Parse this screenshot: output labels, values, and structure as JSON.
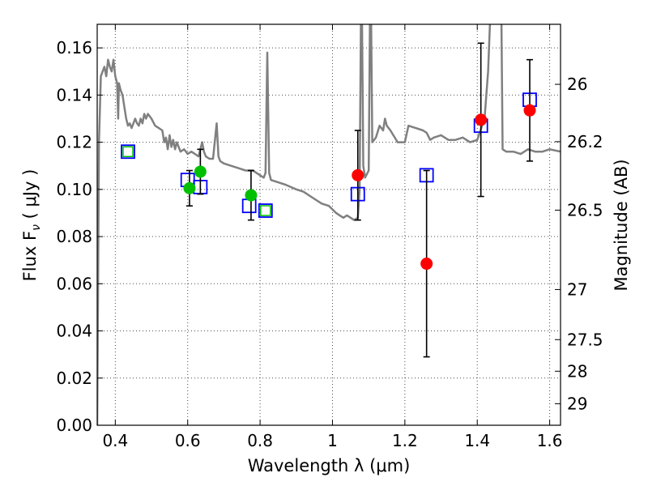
{
  "chart_data": {
    "type": "scatter",
    "xlabel": "Wavelength  λ (μm)",
    "ylabel": "Flux  F",
    "ylabel_sub": "ν",
    "ylabel_tail": " ( μJy )",
    "y2label": "Magnitude (AB)",
    "xlim": [
      0.35,
      1.63
    ],
    "ylim": [
      0.0,
      0.17
    ],
    "grid": true,
    "x_ticks": [
      {
        "value": 0.4,
        "label": "0.4"
      },
      {
        "value": 0.6,
        "label": "0.6"
      },
      {
        "value": 0.8,
        "label": "0.8"
      },
      {
        "value": 1.0,
        "label": "1"
      },
      {
        "value": 1.2,
        "label": "1.2"
      },
      {
        "value": 1.4,
        "label": "1.4"
      },
      {
        "value": 1.6,
        "label": "1.6"
      }
    ],
    "y_ticks": [
      {
        "value": 0.0,
        "label": "0.00"
      },
      {
        "value": 0.02,
        "label": "0.02"
      },
      {
        "value": 0.04,
        "label": "0.04"
      },
      {
        "value": 0.06,
        "label": "0.06"
      },
      {
        "value": 0.08,
        "label": "0.08"
      },
      {
        "value": 0.1,
        "label": "0.10"
      },
      {
        "value": 0.12,
        "label": "0.12"
      },
      {
        "value": 0.14,
        "label": "0.14"
      },
      {
        "value": 0.16,
        "label": "0.16"
      }
    ],
    "y2_ticks": [
      {
        "mag": 26,
        "label": "26"
      },
      {
        "mag": 26.2,
        "label": "26.2"
      },
      {
        "mag": 26.5,
        "label": "26.5"
      },
      {
        "mag": 27,
        "label": "27"
      },
      {
        "mag": 27.5,
        "label": "27.5"
      },
      {
        "mag": 28,
        "label": "28"
      },
      {
        "mag": 29,
        "label": "29"
      }
    ],
    "series": [
      {
        "type": "line",
        "color": "#808080",
        "points": [
          [
            0.35,
            0.0
          ],
          [
            0.355,
            0.12
          ],
          [
            0.36,
            0.148
          ],
          [
            0.365,
            0.15
          ],
          [
            0.37,
            0.152
          ],
          [
            0.375,
            0.148
          ],
          [
            0.38,
            0.155
          ],
          [
            0.385,
            0.152
          ],
          [
            0.39,
            0.15
          ],
          [
            0.395,
            0.155
          ],
          [
            0.4,
            0.148
          ],
          [
            0.405,
            0.145
          ],
          [
            0.408,
            0.13
          ],
          [
            0.41,
            0.145
          ],
          [
            0.415,
            0.142
          ],
          [
            0.42,
            0.14
          ],
          [
            0.425,
            0.135
          ],
          [
            0.43,
            0.13
          ],
          [
            0.435,
            0.127
          ],
          [
            0.44,
            0.128
          ],
          [
            0.445,
            0.126
          ],
          [
            0.45,
            0.128
          ],
          [
            0.455,
            0.13
          ],
          [
            0.46,
            0.128
          ],
          [
            0.465,
            0.127
          ],
          [
            0.47,
            0.13
          ],
          [
            0.475,
            0.128
          ],
          [
            0.48,
            0.132
          ],
          [
            0.485,
            0.13
          ],
          [
            0.49,
            0.132
          ],
          [
            0.5,
            0.13
          ],
          [
            0.51,
            0.127
          ],
          [
            0.52,
            0.126
          ],
          [
            0.53,
            0.125
          ],
          [
            0.535,
            0.12
          ],
          [
            0.54,
            0.122
          ],
          [
            0.545,
            0.117
          ],
          [
            0.55,
            0.123
          ],
          [
            0.555,
            0.118
          ],
          [
            0.56,
            0.121
          ],
          [
            0.565,
            0.117
          ],
          [
            0.57,
            0.12
          ],
          [
            0.58,
            0.116
          ],
          [
            0.59,
            0.117
          ],
          [
            0.6,
            0.115
          ],
          [
            0.61,
            0.116
          ],
          [
            0.62,
            0.115
          ],
          [
            0.63,
            0.114
          ],
          [
            0.64,
            0.12
          ],
          [
            0.645,
            0.116
          ],
          [
            0.65,
            0.114
          ],
          [
            0.66,
            0.113
          ],
          [
            0.67,
            0.113
          ],
          [
            0.68,
            0.128
          ],
          [
            0.685,
            0.114
          ],
          [
            0.69,
            0.112
          ],
          [
            0.7,
            0.111
          ],
          [
            0.72,
            0.11
          ],
          [
            0.74,
            0.109
          ],
          [
            0.76,
            0.108
          ],
          [
            0.78,
            0.108
          ],
          [
            0.79,
            0.107
          ],
          [
            0.8,
            0.106
          ],
          [
            0.81,
            0.105
          ],
          [
            0.815,
            0.107
          ],
          [
            0.82,
            0.158
          ],
          [
            0.825,
            0.107
          ],
          [
            0.83,
            0.104
          ],
          [
            0.85,
            0.103
          ],
          [
            0.87,
            0.102
          ],
          [
            0.9,
            0.1
          ],
          [
            0.92,
            0.099
          ],
          [
            0.95,
            0.096
          ],
          [
            0.97,
            0.094
          ],
          [
            0.99,
            0.093
          ],
          [
            1.01,
            0.09
          ],
          [
            1.02,
            0.089
          ],
          [
            1.03,
            0.088
          ],
          [
            1.04,
            0.089
          ],
          [
            1.05,
            0.088
          ],
          [
            1.06,
            0.087
          ],
          [
            1.07,
            0.088
          ],
          [
            1.075,
            0.1
          ],
          [
            1.08,
            0.2
          ],
          [
            1.085,
            0.11
          ],
          [
            1.09,
            0.105
          ],
          [
            1.1,
            0.108
          ],
          [
            1.105,
            0.2
          ],
          [
            1.11,
            0.12
          ],
          [
            1.12,
            0.122
          ],
          [
            1.13,
            0.127
          ],
          [
            1.14,
            0.125
          ],
          [
            1.145,
            0.13
          ],
          [
            1.15,
            0.127
          ],
          [
            1.16,
            0.125
          ],
          [
            1.18,
            0.12
          ],
          [
            1.2,
            0.12
          ],
          [
            1.21,
            0.127
          ],
          [
            1.23,
            0.126
          ],
          [
            1.25,
            0.125
          ],
          [
            1.26,
            0.124
          ],
          [
            1.27,
            0.121
          ],
          [
            1.28,
            0.122
          ],
          [
            1.3,
            0.123
          ],
          [
            1.32,
            0.121
          ],
          [
            1.34,
            0.121
          ],
          [
            1.36,
            0.122
          ],
          [
            1.38,
            0.12
          ],
          [
            1.4,
            0.121
          ],
          [
            1.42,
            0.13
          ],
          [
            1.43,
            0.15
          ],
          [
            1.44,
            0.19
          ],
          [
            1.45,
            0.2
          ],
          [
            1.46,
            0.2
          ],
          [
            1.465,
            0.2
          ],
          [
            1.47,
            0.117
          ],
          [
            1.48,
            0.116
          ],
          [
            1.5,
            0.116
          ],
          [
            1.52,
            0.115
          ],
          [
            1.54,
            0.117
          ],
          [
            1.56,
            0.116
          ],
          [
            1.58,
            0.116
          ],
          [
            1.6,
            0.117
          ],
          [
            1.63,
            0.116
          ]
        ]
      },
      {
        "type": "open-square",
        "color": "#0000ff",
        "points": [
          [
            0.435,
            0.116
          ],
          [
            0.6,
            0.104
          ],
          [
            0.635,
            0.101
          ],
          [
            0.77,
            0.093
          ],
          [
            0.815,
            0.091
          ],
          [
            1.07,
            0.098
          ],
          [
            1.26,
            0.106
          ],
          [
            1.41,
            0.127
          ],
          [
            1.545,
            0.138
          ]
        ]
      },
      {
        "type": "green-square",
        "color": "#00c000",
        "points": [
          [
            0.435,
            0.116
          ],
          [
            0.815,
            0.091
          ]
        ]
      },
      {
        "type": "errorbar-circle",
        "color": "#00c000",
        "points": [
          {
            "x": 0.605,
            "y": 0.1005,
            "lo": 0.093,
            "hi": 0.108
          },
          {
            "x": 0.635,
            "y": 0.1075,
            "lo": 0.098,
            "hi": 0.117
          },
          {
            "x": 0.775,
            "y": 0.0975,
            "lo": 0.087,
            "hi": 0.108
          }
        ]
      },
      {
        "type": "errorbar-circle",
        "color": "#ff0000",
        "points": [
          {
            "x": 1.07,
            "y": 0.106,
            "lo": 0.087,
            "hi": 0.125
          },
          {
            "x": 1.26,
            "y": 0.0685,
            "lo": 0.029,
            "hi": 0.108
          },
          {
            "x": 1.41,
            "y": 0.1295,
            "lo": 0.097,
            "hi": 0.162
          },
          {
            "x": 1.545,
            "y": 0.1335,
            "lo": 0.112,
            "hi": 0.155
          }
        ]
      }
    ]
  }
}
